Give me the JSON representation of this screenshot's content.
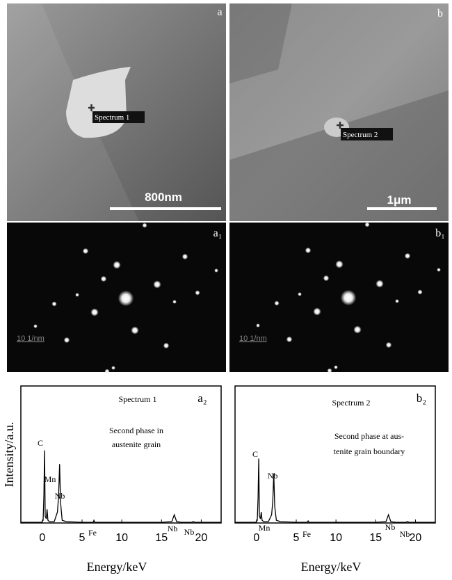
{
  "images": [
    {
      "label": "a",
      "marker": "Spectrum 1",
      "scale": "800nm"
    },
    {
      "label": "b",
      "marker": "Spectrum 2",
      "scale": "1μm"
    },
    {
      "label": "a₁",
      "scale": "10 1/nm"
    },
    {
      "label": "b₁",
      "scale": "10 1/nm"
    }
  ],
  "chart_data": [
    {
      "type": "line",
      "title": "Spectrum 1",
      "panel": "a₂",
      "description": [
        "Second phase in",
        "austenite grain"
      ],
      "y_label": "Intensity/a.u.",
      "x_label": "Energy/keV",
      "xlim": [
        -2.7,
        22.5
      ],
      "ylim": [
        0,
        100
      ],
      "xticks": [
        0,
        5,
        10,
        15,
        20
      ],
      "color": "#000000",
      "x": [
        -2.7,
        -0.1,
        0.1,
        0.2,
        0.28,
        0.36,
        0.5,
        0.6,
        0.7,
        0.9,
        1.5,
        1.9,
        2.05,
        2.17,
        2.3,
        2.5,
        3,
        5,
        6.4,
        6.5,
        6.6,
        8,
        10,
        15,
        16.3,
        16.6,
        16.9,
        17.5,
        18.8,
        19,
        19.2,
        22.5
      ],
      "values": [
        0.5,
        0.5,
        2,
        20,
        53,
        5,
        3,
        10,
        2,
        1,
        1,
        8,
        20,
        43,
        15,
        2,
        1,
        0.5,
        0.5,
        2,
        0.5,
        0.5,
        0.5,
        0.5,
        1,
        6,
        1,
        0.5,
        0.5,
        1,
        0.5,
        0.5
      ],
      "annotations": [
        "C",
        "Mn",
        "Nb",
        "Fe",
        "Nb",
        "Nb"
      ]
    },
    {
      "type": "line",
      "title": "Spectrum 2",
      "panel": "b₂",
      "description": [
        "Second phase at aus-",
        "tenite grain boundary"
      ],
      "x_label": "Energy/keV",
      "xlim": [
        -2.7,
        22.5
      ],
      "ylim": [
        0,
        100
      ],
      "xticks": [
        0,
        5,
        10,
        15,
        20
      ],
      "color": "#000000",
      "x": [
        -2.7,
        -0.1,
        0.1,
        0.2,
        0.28,
        0.36,
        0.5,
        0.6,
        0.7,
        0.9,
        1.5,
        1.9,
        2.05,
        2.17,
        2.3,
        2.5,
        3,
        5,
        6.4,
        6.5,
        6.6,
        8,
        10,
        15,
        16.3,
        16.6,
        16.9,
        17.5,
        18.8,
        19,
        19.2,
        22.5
      ],
      "values": [
        0.5,
        0.5,
        2,
        18,
        47,
        5,
        3,
        8,
        2,
        1,
        1,
        6,
        16,
        36,
        12,
        2,
        1,
        0.5,
        0.5,
        1.5,
        0.5,
        0.5,
        0.5,
        0.5,
        1,
        6,
        1,
        0.5,
        0.5,
        1,
        0.5,
        0.5
      ],
      "annotations": [
        "C",
        "Nb",
        "Mn",
        "Fe",
        "Nb",
        "Nb"
      ]
    }
  ]
}
